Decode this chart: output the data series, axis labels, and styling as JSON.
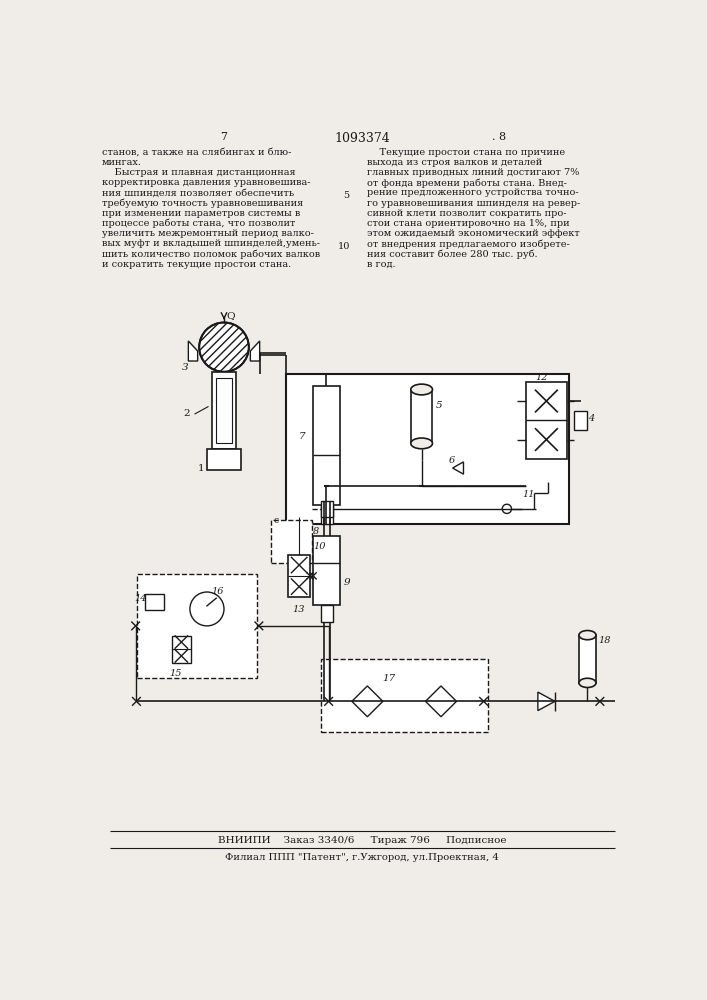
{
  "title": "1093374",
  "page_left": "7",
  "page_right": ". 8",
  "left_text": [
    "станов, а также на слябингах и блю-",
    "мингах.",
    "    Быстрая и плавная дистанционная",
    "корректировка давления уравновешива-",
    "ния шпинделя позволяет обеспечить",
    "требуемую точность уравновешивания",
    "при изменении параметров системы в",
    "процессе работы стана, что позволит",
    "увеличить межремонтный период валко-",
    "вых муфт и вкладышей шпинделей,умень-",
    "шить количество поломок рабочих валков",
    "и сократить текущие простои стана."
  ],
  "right_text": [
    "    Текущие простои стана по причине",
    "выхода из строя валков и деталей",
    "главных приводных линий достигают 7%",
    "от фонда времени работы стана. Внед-",
    "рение предложенного устройства точно-",
    "го уравновешивания шпинделя на ревер-",
    "сивной клети позволит сократить про-",
    "стои стана ориентировочно на 1%, при",
    "этом ожидаемый экономический эффект",
    "от внедрения предлагаемого изобрете-",
    "ния составит более 280 тыс. руб.",
    "в год."
  ],
  "bottom_text1": "ВНИИПИ    Заказ 3340/6     Тираж 796     Подписное",
  "bottom_text2": "Филиал ППП \"Патент\", г.Ужгород, ул.Проектная, 4",
  "bg_color": "#f0ede8"
}
